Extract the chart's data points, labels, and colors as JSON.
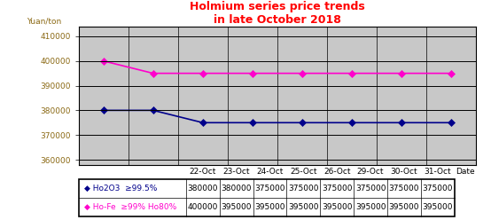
{
  "title": "Holmium series price trends\nin late October 2018",
  "title_color": "#FF0000",
  "ylabel": "Yuan/ton",
  "xlabel": "Date",
  "dates": [
    "22-Oct",
    "23-Oct",
    "24-Oct",
    "25-Oct",
    "26-Oct",
    "29-Oct",
    "30-Oct",
    "31-Oct"
  ],
  "series": [
    {
      "label": "Ho2O3  ≥99.5%",
      "values": [
        380000,
        380000,
        375000,
        375000,
        375000,
        375000,
        375000,
        375000
      ],
      "color": "#00008B",
      "marker": "D",
      "markersize": 4
    },
    {
      "label": "Ho-Fe  ≥99% Ho80%",
      "values": [
        400000,
        395000,
        395000,
        395000,
        395000,
        395000,
        395000,
        395000
      ],
      "color": "#FF00CC",
      "marker": "D",
      "markersize": 4
    }
  ],
  "ylim": [
    358000,
    414000
  ],
  "yticks": [
    360000,
    370000,
    380000,
    390000,
    400000,
    410000
  ],
  "plot_bg_color": "#C8C8C8",
  "fig_bg_color": "#FFFFFF",
  "grid_color": "#000000",
  "row1_label": "◆ Ho2O3  ≥99.5%",
  "row1_values": [
    "380000",
    "380000",
    "375000",
    "375000",
    "375000",
    "375000",
    "375000",
    "375000"
  ],
  "row1_color": "#00008B",
  "row2_label": "◆ Ho-Fe  ≥99% Ho80%",
  "row2_values": [
    "400000",
    "395000",
    "395000",
    "395000",
    "395000",
    "395000",
    "395000",
    "395000"
  ],
  "row2_color": "#FF00CC",
  "tick_label_color": "#8B6914",
  "ytick_color": "#8B6914"
}
